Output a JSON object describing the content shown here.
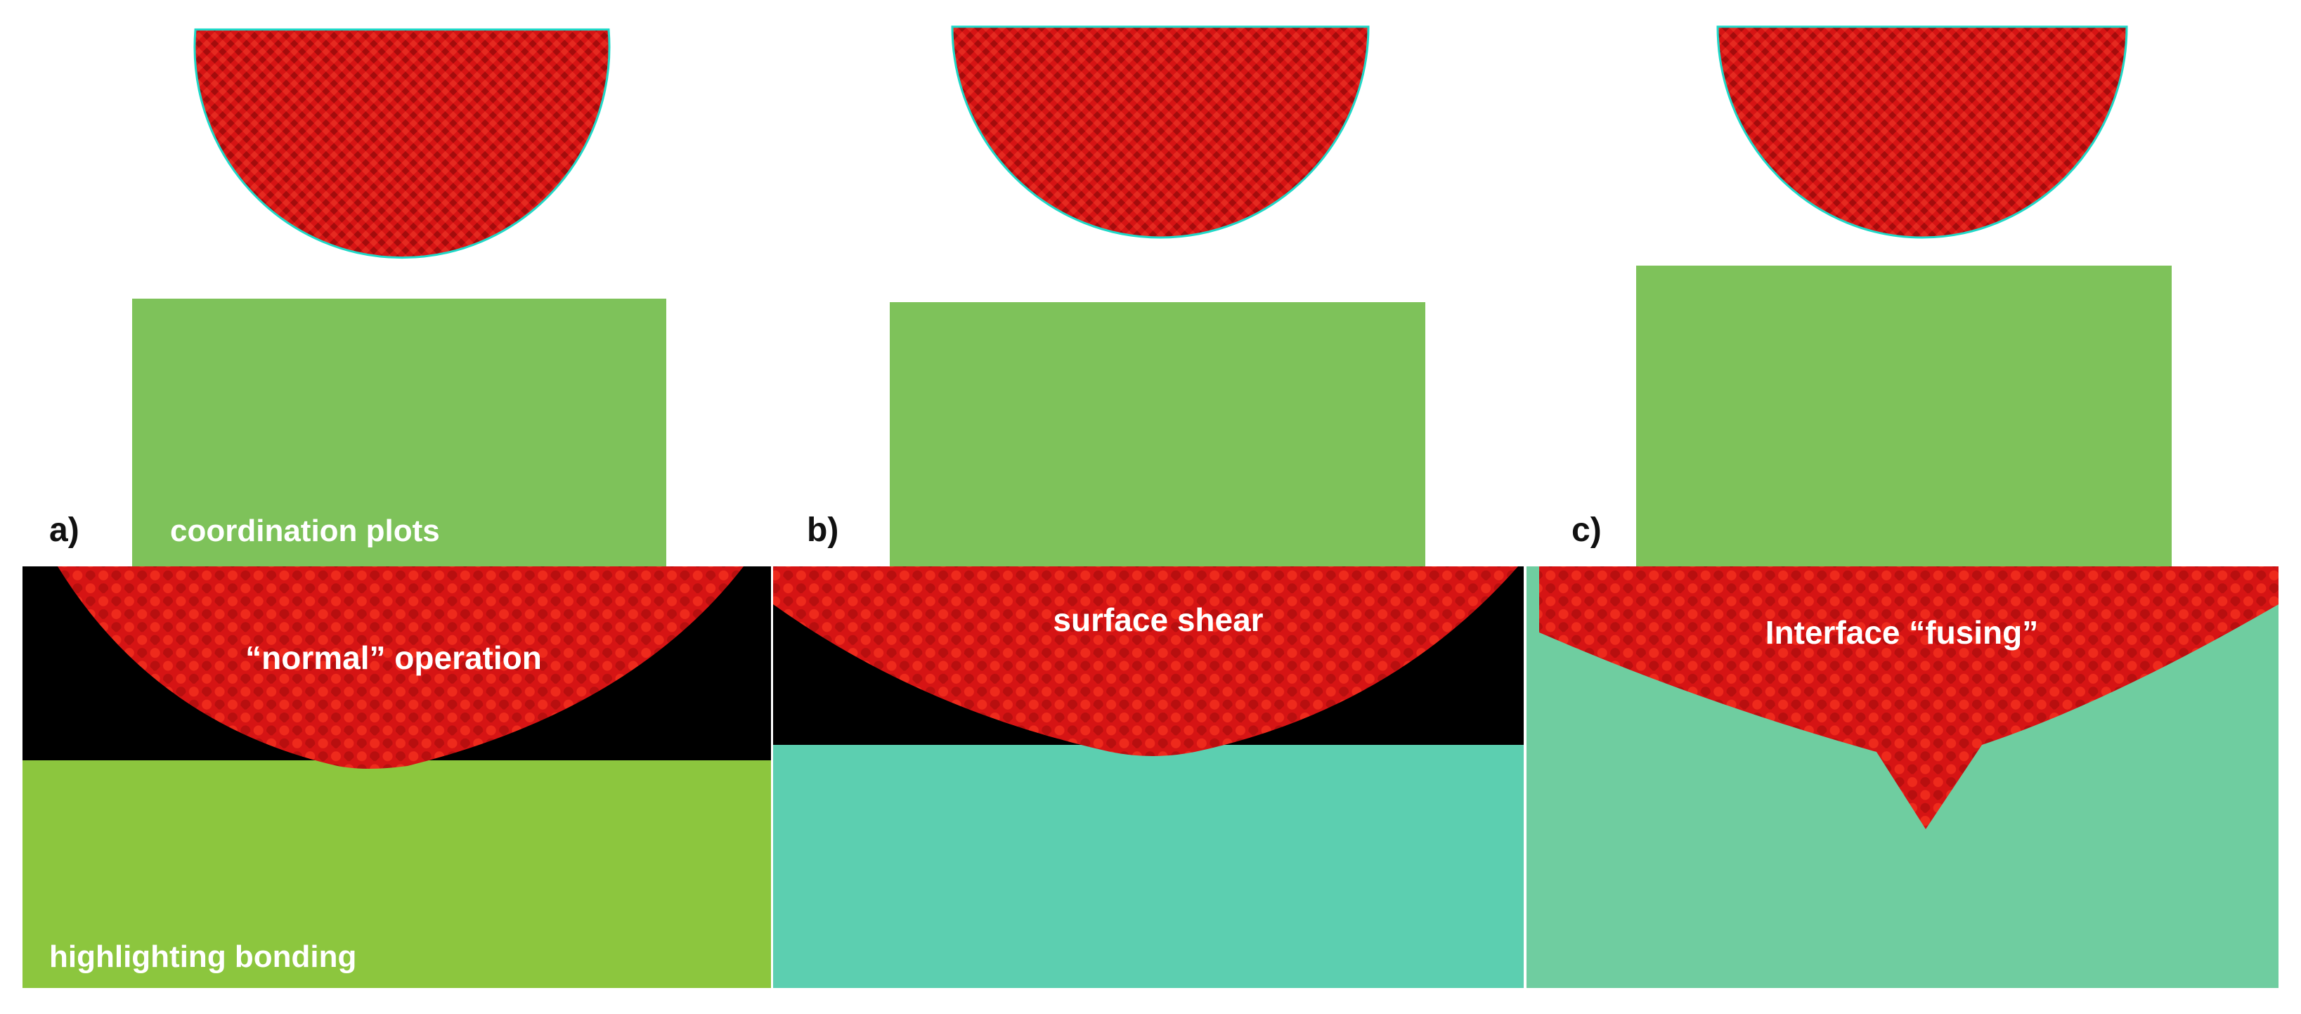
{
  "figure": {
    "panels": [
      {
        "id": "a",
        "label": "a)",
        "mode_label": "“normal” operation"
      },
      {
        "id": "b",
        "label": "b)",
        "mode_label": "surface shear"
      },
      {
        "id": "c",
        "label": "c)",
        "mode_label": "Interface “fusing”"
      }
    ],
    "top_row_caption": "coordination plots",
    "bottom_row_caption": "highlighting bonding"
  },
  "colors": {
    "sphere_red": "#d61414",
    "yellow_green": "#a8d616",
    "cyan": "#1fd8c8",
    "blue": "#1a1ad6",
    "black_gap": "#000000",
    "background": "#ffffff"
  }
}
